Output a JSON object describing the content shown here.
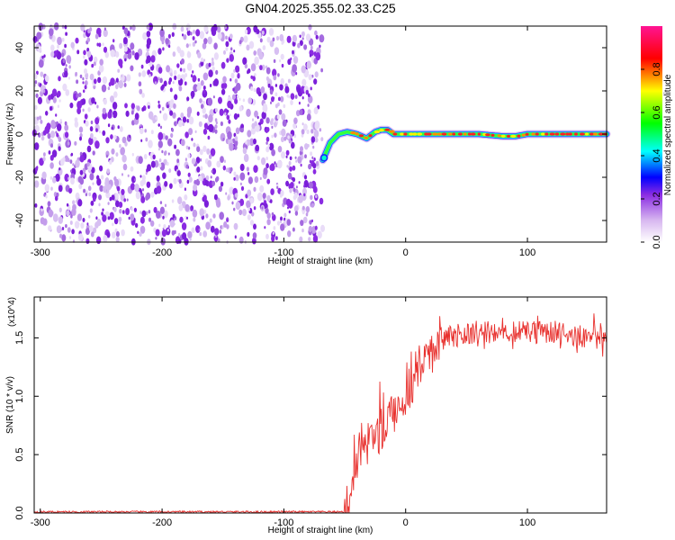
{
  "chart_data": [
    {
      "type": "heatmap",
      "title": "GN04.2025.355.02.33.C25",
      "xlabel": "Height of straight line (km)",
      "ylabel": "Frequency (Hz)",
      "xlim": [
        -305,
        165
      ],
      "ylim": [
        -50,
        50
      ],
      "x_ticks": [
        -300,
        -200,
        -100,
        0,
        100
      ],
      "y_ticks": [
        -40,
        -20,
        0,
        20,
        40
      ],
      "colorbar": {
        "label": "Normalized spectral amplitude",
        "range": [
          0,
          1
        ],
        "ticks": [
          "0.0",
          "0.2",
          "0.4",
          "0.6",
          "0.8"
        ],
        "colors": [
          "#ffffff",
          "#8a2be2",
          "#0000ff",
          "#00ffff",
          "#00ff00",
          "#ffff00",
          "#ff0000",
          "#ff1493"
        ]
      },
      "noise_region_x": [
        -305,
        -68
      ],
      "signal_start_x": -68,
      "signal_track": {
        "x": [
          -68,
          -62,
          -55,
          -48,
          -40,
          -32,
          -25,
          -20,
          -15,
          -10,
          0,
          20,
          40,
          60,
          80,
          90,
          100,
          120,
          140,
          165
        ],
        "y": [
          -12,
          -4,
          0,
          1,
          0,
          -2,
          1,
          2,
          2,
          0,
          0,
          0,
          0,
          0,
          -1,
          -1,
          0,
          0,
          0,
          0
        ]
      }
    },
    {
      "type": "line",
      "xlabel": "Height of straight line (km)",
      "ylabel": "SNR (10 * v/v)",
      "y_multiplier": "(x10^4)",
      "xlim": [
        -305,
        165
      ],
      "ylim": [
        0,
        1.85
      ],
      "x_ticks": [
        -300,
        -200,
        -100,
        0,
        100
      ],
      "y_ticks": [
        "0.0",
        "0.5",
        "1.0",
        "1.5"
      ],
      "color": "#e8312e",
      "envelope": {
        "x": [
          -305,
          -50,
          -45,
          -40,
          -30,
          -20,
          -10,
          0,
          10,
          20,
          30,
          40,
          60,
          80,
          100,
          120,
          140,
          165
        ],
        "y": [
          0.01,
          0.01,
          0.15,
          0.45,
          0.55,
          0.7,
          0.85,
          1.0,
          1.2,
          1.35,
          1.48,
          1.52,
          1.55,
          1.55,
          1.55,
          1.55,
          1.52,
          1.5
        ]
      }
    }
  ]
}
